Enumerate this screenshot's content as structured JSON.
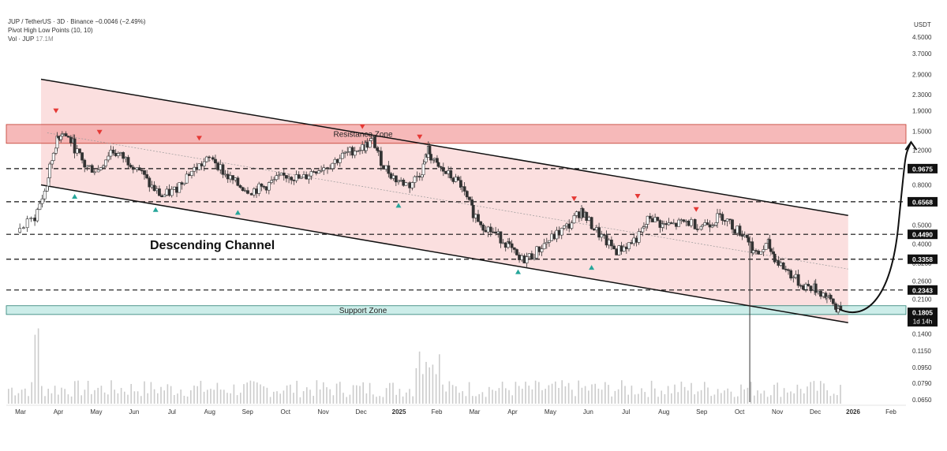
{
  "legend": {
    "symbol_line": "JUP / TetherUS · 3D · Binance",
    "change": "−0.0046 (−2.49%)",
    "indicator": "Pivot High Low Points (10, 10)",
    "vol_label": "Vol · JUP",
    "vol_value": "17.1M"
  },
  "colors": {
    "up": "#333333",
    "down": "#333333",
    "channel_fill": "#f9d4d4",
    "resistance_fill": "#f4a8a8",
    "support_fill": "#bfe9e4",
    "pivot_high": "#e53935",
    "pivot_low": "#26a69a",
    "volume": "#cccccc"
  },
  "chart_data": {
    "type": "candlestick",
    "title": "",
    "y_axis_unit": "USDT",
    "y_scale": "log",
    "y_ticks": [
      "4.5000",
      "3.7000",
      "2.9000",
      "2.3000",
      "1.9000",
      "1.5000",
      "1.2000",
      "0.8000",
      "0.5000",
      "0.4000",
      "0.3200",
      "0.2600",
      "0.2100",
      "0.1400",
      "0.1150",
      "0.0950",
      "0.0790",
      "0.0650"
    ],
    "x_ticks": [
      "Mar",
      "Apr",
      "May",
      "Jun",
      "Jul",
      "Aug",
      "Sep",
      "Oct",
      "Nov",
      "Dec",
      "2025",
      "Feb",
      "Mar",
      "Apr",
      "May",
      "Jun",
      "Jul",
      "Aug",
      "Sep",
      "Oct",
      "Nov",
      "Dec",
      "2026",
      "Feb"
    ],
    "price_levels": [
      "0.9675",
      "0.6568",
      "0.4490",
      "0.3358",
      "0.2343"
    ],
    "current_price": "0.1805",
    "countdown": "1d 14h",
    "zones": [
      {
        "name": "Resistance Zone",
        "from": 1.3,
        "to": 1.62
      },
      {
        "name": "Support Zone",
        "from": 0.176,
        "to": 0.195
      }
    ],
    "channel_label": "Descending Channel",
    "close_path": [
      [
        "2024-03-01",
        0.46
      ],
      [
        "2024-03-15",
        0.55
      ],
      [
        "2024-03-25",
        0.8
      ],
      [
        "2024-04-01",
        1.3
      ],
      [
        "2024-04-06",
        1.5
      ],
      [
        "2024-04-15",
        1.3
      ],
      [
        "2024-04-24",
        1.0
      ],
      [
        "2024-05-05",
        0.95
      ],
      [
        "2024-05-15",
        1.2
      ],
      [
        "2024-05-25",
        1.1
      ],
      [
        "2024-06-05",
        1.0
      ],
      [
        "2024-06-15",
        0.8
      ],
      [
        "2024-06-25",
        0.7
      ],
      [
        "2024-07-05",
        0.75
      ],
      [
        "2024-07-15",
        0.9
      ],
      [
        "2024-07-25",
        1.0
      ],
      [
        "2024-08-05",
        1.1
      ],
      [
        "2024-08-15",
        0.9
      ],
      [
        "2024-08-25",
        0.8
      ],
      [
        "2024-09-05",
        0.75
      ],
      [
        "2024-09-15",
        0.78
      ],
      [
        "2024-09-25",
        0.85
      ],
      [
        "2024-10-05",
        0.9
      ],
      [
        "2024-10-15",
        0.85
      ],
      [
        "2024-10-25",
        0.95
      ],
      [
        "2024-11-05",
        1.0
      ],
      [
        "2024-11-15",
        1.1
      ],
      [
        "2024-11-25",
        1.2
      ],
      [
        "2024-12-05",
        1.25
      ],
      [
        "2024-12-12",
        1.35
      ],
      [
        "2024-12-20",
        1.0
      ],
      [
        "2024-12-30",
        0.85
      ],
      [
        "2025-01-10",
        0.8
      ],
      [
        "2025-01-20",
        0.95
      ],
      [
        "2025-01-25",
        1.2
      ],
      [
        "2025-02-01",
        1.0
      ],
      [
        "2025-02-10",
        0.9
      ],
      [
        "2025-02-20",
        0.8
      ],
      [
        "2025-03-01",
        0.6
      ],
      [
        "2025-03-10",
        0.5
      ],
      [
        "2025-03-20",
        0.45
      ],
      [
        "2025-03-30",
        0.4
      ],
      [
        "2025-04-08",
        0.33
      ],
      [
        "2025-04-18",
        0.35
      ],
      [
        "2025-04-28",
        0.4
      ],
      [
        "2025-05-08",
        0.45
      ],
      [
        "2025-05-18",
        0.5
      ],
      [
        "2025-05-28",
        0.6
      ],
      [
        "2025-06-05",
        0.5
      ],
      [
        "2025-06-15",
        0.42
      ],
      [
        "2025-06-25",
        0.37
      ],
      [
        "2025-07-05",
        0.4
      ],
      [
        "2025-07-15",
        0.45
      ],
      [
        "2025-07-22",
        0.55
      ],
      [
        "2025-08-01",
        0.5
      ],
      [
        "2025-08-10",
        0.5
      ],
      [
        "2025-08-20",
        0.52
      ],
      [
        "2025-09-01",
        0.5
      ],
      [
        "2025-09-10",
        0.52
      ],
      [
        "2025-09-18",
        0.56
      ],
      [
        "2025-09-28",
        0.48
      ],
      [
        "2025-10-08",
        0.44
      ],
      [
        "2025-10-15",
        0.35
      ],
      [
        "2025-10-25",
        0.4
      ],
      [
        "2025-11-01",
        0.33
      ],
      [
        "2025-11-10",
        0.29
      ],
      [
        "2025-11-20",
        0.25
      ],
      [
        "2025-12-01",
        0.24
      ],
      [
        "2025-12-10",
        0.22
      ],
      [
        "2025-12-18",
        0.195
      ],
      [
        "2025-12-22",
        0.1805
      ]
    ],
    "pivot_highs": [
      [
        "2024-04-01",
        1.9
      ],
      [
        "2024-05-06",
        1.48
      ],
      [
        "2024-07-25",
        1.38
      ],
      [
        "2024-12-03",
        1.58
      ],
      [
        "2025-01-18",
        1.4
      ],
      [
        "2025-05-22",
        0.68
      ],
      [
        "2025-07-12",
        0.7
      ],
      [
        "2025-08-28",
        0.6
      ]
    ],
    "pivot_lows": [
      [
        "2024-04-16",
        0.7
      ],
      [
        "2024-06-20",
        0.6
      ],
      [
        "2024-08-25",
        0.58
      ],
      [
        "2025-01-01",
        0.63
      ],
      [
        "2025-04-07",
        0.29
      ],
      [
        "2025-06-05",
        0.305
      ]
    ]
  }
}
